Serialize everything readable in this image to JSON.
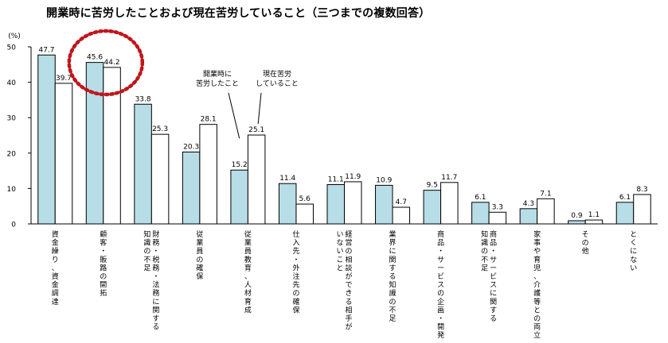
{
  "chart_data": {
    "type": "bar",
    "title": "開業時に苦労したことおよび現在苦労していること（三つまでの複数回答）",
    "ylabel": "(%)",
    "ylim": [
      0,
      50
    ],
    "yticks": [
      0,
      10,
      20,
      30,
      40,
      50
    ],
    "categories": [
      "資金繰り、資金調達",
      "顧客・販路の開拓",
      "財務・税務・法務に関する知識の不足",
      "従業員の確保",
      "従業員教育、人材育成",
      "仕入先・外注先の確保",
      "経営の相談ができる相手がいないこと",
      "業界に関する知識の不足",
      "商品・サービスの企画・開発",
      "商品・サービスに関する知識の不足",
      "家事や育児、介護等との両立",
      "その他",
      "とくにない"
    ],
    "category_lines": [
      [
        "資金繰り、資金調達"
      ],
      [
        "顧客・販路の開拓"
      ],
      [
        "財務・税務・法務に関する",
        "知識の不足"
      ],
      [
        "従業員の確保"
      ],
      [
        "従業員教育、人材育成"
      ],
      [
        "仕入先・外注先の確保"
      ],
      [
        "経営の相談ができる相手が",
        "いないこと"
      ],
      [
        "業界に関する知識の不足"
      ],
      [
        "商品・サービスの企画・開発"
      ],
      [
        "商品・サービスに関する",
        "知識の不足"
      ],
      [
        "家事や育児、介護等との両立"
      ],
      [
        "その他"
      ],
      [
        "とくにない"
      ]
    ],
    "series": [
      {
        "name": "開業時に苦労したこと",
        "color": "#b7dde6",
        "values": [
          47.7,
          45.6,
          33.8,
          20.3,
          15.2,
          11.4,
          11.1,
          10.9,
          9.5,
          6.1,
          4.3,
          0.9,
          6.1
        ]
      },
      {
        "name": "現在苦労していること",
        "color": "#ffffff",
        "values": [
          39.7,
          44.2,
          25.3,
          28.1,
          25.1,
          5.6,
          11.9,
          4.7,
          11.7,
          3.3,
          7.1,
          1.1,
          8.3
        ]
      }
    ],
    "callouts": [
      {
        "lines": [
          "開業時に",
          "苦労したこと"
        ],
        "series": 0,
        "category": 4
      },
      {
        "lines": [
          "現在苦労",
          "していること"
        ],
        "series": 1,
        "category": 4
      }
    ],
    "highlight": {
      "category": 1,
      "shape": "dotted-circle",
      "color": "#c0161b"
    },
    "grid": false
  }
}
